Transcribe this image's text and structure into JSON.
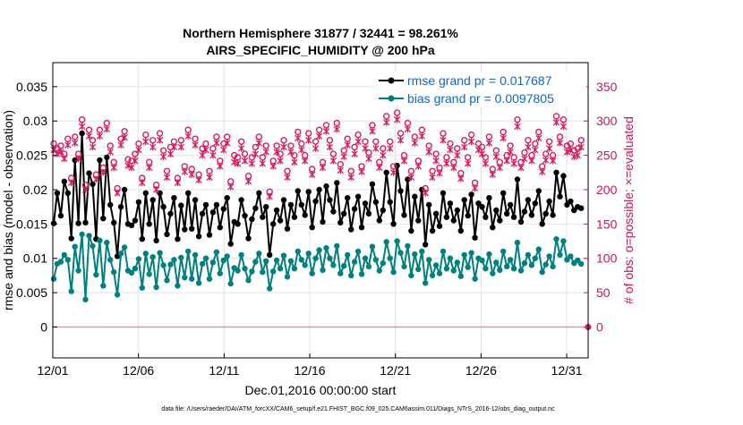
{
  "chart_data": {
    "type": "line",
    "title": "Northern Hemisphere 31877 / 32441 = 98.261%",
    "subtitle": "AIRS_SPECIFIC_HUMIDITY @ 200 hPa",
    "xlabel": "Dec.01,2016 00:00:00 start",
    "ylabel_left": "rmse and bias (model - observation)",
    "ylabel_right": "# of obs: o=possible; ×=evaluated",
    "x_ticks": [
      "12/01",
      "12/06",
      "12/11",
      "12/16",
      "12/21",
      "12/26",
      "12/31"
    ],
    "x_tick_days": [
      0,
      5,
      10,
      15,
      20,
      25,
      30
    ],
    "xlim": [
      0,
      31.25
    ],
    "ylim_left": [
      -0.0045,
      0.0385
    ],
    "y_ticks_left": [
      "0",
      "0.005",
      "0.01",
      "0.015",
      "0.02",
      "0.025",
      "0.03",
      "0.035"
    ],
    "y_tick_values_left": [
      0,
      0.005,
      0.01,
      0.015,
      0.02,
      0.025,
      0.03,
      0.035
    ],
    "ylim_right": [
      -45,
      385
    ],
    "y_ticks_right": [
      "0",
      "50",
      "100",
      "150",
      "200",
      "250",
      "300",
      "350"
    ],
    "y_tick_values_right": [
      0,
      50,
      100,
      150,
      200,
      250,
      300,
      350
    ],
    "footer": "data file: /Users/raeder/DAI/ATM_forcXX/CAM6_setup/f.e21.FHIST_BGC.f09_025.CAM6assim.011/Diags_NTrS_2016-12/obs_diag_output.nc",
    "legend": [
      {
        "name": "rmse grand pr = 0.017687",
        "color": "#000000"
      },
      {
        "name": "bias grand pr = 0.0097805",
        "color": "#00807f"
      }
    ],
    "series": [
      {
        "name": "rmse",
        "color": "#000000",
        "values": [
          0.0151,
          0.0195,
          0.0162,
          0.0212,
          0.0195,
          0.0129,
          0.0243,
          0.0151,
          0.0282,
          0.0152,
          0.0224,
          0.0208,
          0.0128,
          0.0243,
          0.0158,
          0.0247,
          0.0178,
          0.0152,
          0.0103,
          0.0175,
          0.02,
          0.015,
          0.0148,
          0.0155,
          0.0182,
          0.0128,
          0.0195,
          0.015,
          0.0185,
          0.0126,
          0.0195,
          0.0175,
          0.0135,
          0.0165,
          0.0188,
          0.0128,
          0.0177,
          0.0142,
          0.0195,
          0.0143,
          0.0185,
          0.0132,
          0.0165,
          0.0178,
          0.0134,
          0.0167,
          0.0178,
          0.0145,
          0.0172,
          0.0188,
          0.0121,
          0.0153,
          0.015,
          0.0185,
          0.0162,
          0.0129,
          0.0157,
          0.0173,
          0.0195,
          0.016,
          0.0175,
          0.0105,
          0.015,
          0.017,
          0.0155,
          0.0185,
          0.0143,
          0.0178,
          0.016,
          0.0198,
          0.0178,
          0.0163,
          0.0197,
          0.0145,
          0.0183,
          0.02,
          0.0153,
          0.0205,
          0.0185,
          0.0168,
          0.021,
          0.0152,
          0.0165,
          0.0188,
          0.0142,
          0.0172,
          0.019,
          0.0145,
          0.018,
          0.0165,
          0.0208,
          0.0182,
          0.0155,
          0.017,
          0.0225,
          0.0182,
          0.015,
          0.0235,
          0.0198,
          0.0163,
          0.0215,
          0.014,
          0.019,
          0.0155,
          0.02,
          0.012,
          0.0178,
          0.014,
          0.0165,
          0.0147,
          0.0195,
          0.016,
          0.018,
          0.0155,
          0.017,
          0.014,
          0.0185,
          0.0162,
          0.0193,
          0.013,
          0.018,
          0.0175,
          0.016,
          0.0188,
          0.0145,
          0.017,
          0.0155,
          0.0195,
          0.0165,
          0.0178,
          0.016,
          0.0215,
          0.0153,
          0.0168,
          0.0185,
          0.0163,
          0.018,
          0.0198,
          0.015,
          0.0165,
          0.0183,
          0.0163,
          0.0225,
          0.019,
          0.022,
          0.0178,
          0.0183,
          0.017,
          0.0175,
          0.0173
        ],
        "marker": "filled-circle"
      },
      {
        "name": "bias",
        "color": "#00807f",
        "values": [
          0.007,
          0.0092,
          0.0095,
          0.0105,
          0.0098,
          0.0052,
          0.0117,
          0.0082,
          0.0135,
          0.004,
          0.0133,
          0.0118,
          0.0076,
          0.0126,
          0.006,
          0.0123,
          0.0098,
          0.008,
          0.0047,
          0.0107,
          0.0116,
          0.0082,
          0.0079,
          0.0085,
          0.0099,
          0.0057,
          0.0107,
          0.0077,
          0.0102,
          0.0058,
          0.0108,
          0.009,
          0.0068,
          0.0091,
          0.0098,
          0.006,
          0.0101,
          0.0072,
          0.011,
          0.007,
          0.0105,
          0.0064,
          0.0092,
          0.01,
          0.007,
          0.0094,
          0.0109,
          0.0078,
          0.0097,
          0.0103,
          0.0063,
          0.0086,
          0.0082,
          0.0105,
          0.0085,
          0.0068,
          0.0081,
          0.0095,
          0.0107,
          0.008,
          0.0096,
          0.0056,
          0.0081,
          0.0097,
          0.0085,
          0.0104,
          0.0073,
          0.0096,
          0.0085,
          0.011,
          0.0098,
          0.009,
          0.0107,
          0.0078,
          0.01,
          0.0112,
          0.0083,
          0.0115,
          0.01,
          0.009,
          0.0118,
          0.0078,
          0.0089,
          0.0105,
          0.0075,
          0.0095,
          0.011,
          0.0077,
          0.01,
          0.0088,
          0.0117,
          0.0098,
          0.0082,
          0.0093,
          0.0124,
          0.01,
          0.008,
          0.0125,
          0.0108,
          0.0088,
          0.0118,
          0.0075,
          0.0106,
          0.0084,
          0.011,
          0.0064,
          0.0098,
          0.0075,
          0.009,
          0.0078,
          0.011,
          0.0085,
          0.01,
          0.0082,
          0.0094,
          0.0074,
          0.0105,
          0.0087,
          0.0108,
          0.007,
          0.01,
          0.0097,
          0.0085,
          0.0106,
          0.0078,
          0.0094,
          0.0083,
          0.011,
          0.0088,
          0.0098,
          0.0085,
          0.0123,
          0.0082,
          0.0093,
          0.0105,
          0.009,
          0.01,
          0.0113,
          0.008,
          0.0091,
          0.0103,
          0.0088,
          0.0128,
          0.0105,
          0.0125,
          0.0098,
          0.0103,
          0.0093,
          0.0097,
          0.0092
        ],
        "marker": "filled-circle"
      },
      {
        "name": "# obs possible",
        "color": "#d81b60",
        "axis": "right",
        "values": [
          265,
          258,
          262,
          250,
          272,
          215,
          275,
          250,
          300,
          205,
          285,
          270,
          220,
          285,
          230,
          295,
          262,
          238,
          200,
          272,
          283,
          242,
          240,
          250,
          265,
          215,
          278,
          238,
          270,
          205,
          280,
          255,
          225,
          260,
          268,
          215,
          270,
          232,
          285,
          228,
          272,
          220,
          258,
          265,
          225,
          258,
          275,
          240,
          265,
          275,
          210,
          248,
          245,
          268,
          250,
          218,
          245,
          260,
          275,
          245,
          262,
          195,
          240,
          262,
          250,
          270,
          225,
          262,
          248,
          282,
          265,
          248,
          280,
          228,
          268,
          285,
          238,
          292,
          270,
          250,
          295,
          235,
          255,
          272,
          225,
          260,
          278,
          232,
          268,
          252,
          292,
          268,
          238,
          258,
          305,
          268,
          232,
          310,
          280,
          248,
          295,
          225,
          275,
          240,
          285,
          200,
          262,
          225,
          250,
          230,
          280,
          245,
          265,
          238,
          258,
          222,
          270,
          245,
          278,
          208,
          265,
          260,
          245,
          275,
          228,
          255,
          238,
          282,
          248,
          262,
          245,
          300,
          238,
          252,
          270,
          248,
          265,
          282,
          232,
          250,
          268,
          248,
          305,
          275,
          300,
          262,
          265,
          255,
          258,
          270
        ],
        "marker": "circle-open"
      },
      {
        "name": "# obs evaluated",
        "color": "#d81b60",
        "axis": "right",
        "values": [
          258,
          252,
          255,
          245,
          265,
          210,
          268,
          245,
          292,
          200,
          278,
          262,
          215,
          278,
          225,
          288,
          255,
          232,
          195,
          265,
          276,
          235,
          232,
          242,
          258,
          210,
          270,
          232,
          262,
          200,
          272,
          248,
          218,
          252,
          262,
          210,
          262,
          226,
          278,
          222,
          265,
          214,
          250,
          258,
          218,
          250,
          268,
          234,
          258,
          268,
          204,
          240,
          238,
          260,
          242,
          212,
          238,
          252,
          268,
          238,
          255,
          190,
          234,
          255,
          242,
          262,
          218,
          255,
          240,
          275,
          258,
          242,
          272,
          222,
          260,
          278,
          232,
          285,
          262,
          242,
          288,
          228,
          248,
          265,
          218,
          252,
          270,
          226,
          260,
          245,
          285,
          260,
          232,
          250,
          298,
          260,
          225,
          302,
          272,
          242,
          288,
          218,
          268,
          234,
          278,
          195,
          255,
          218,
          242,
          224,
          272,
          238,
          258,
          232,
          250,
          216,
          262,
          238,
          270,
          202,
          258,
          252,
          238,
          268,
          222,
          248,
          232,
          275,
          242,
          255,
          238,
          292,
          232,
          245,
          262,
          242,
          258,
          275,
          226,
          243,
          260,
          242,
          298,
          268,
          292,
          255,
          258,
          248,
          250,
          262
        ],
        "marker": "star"
      }
    ]
  }
}
